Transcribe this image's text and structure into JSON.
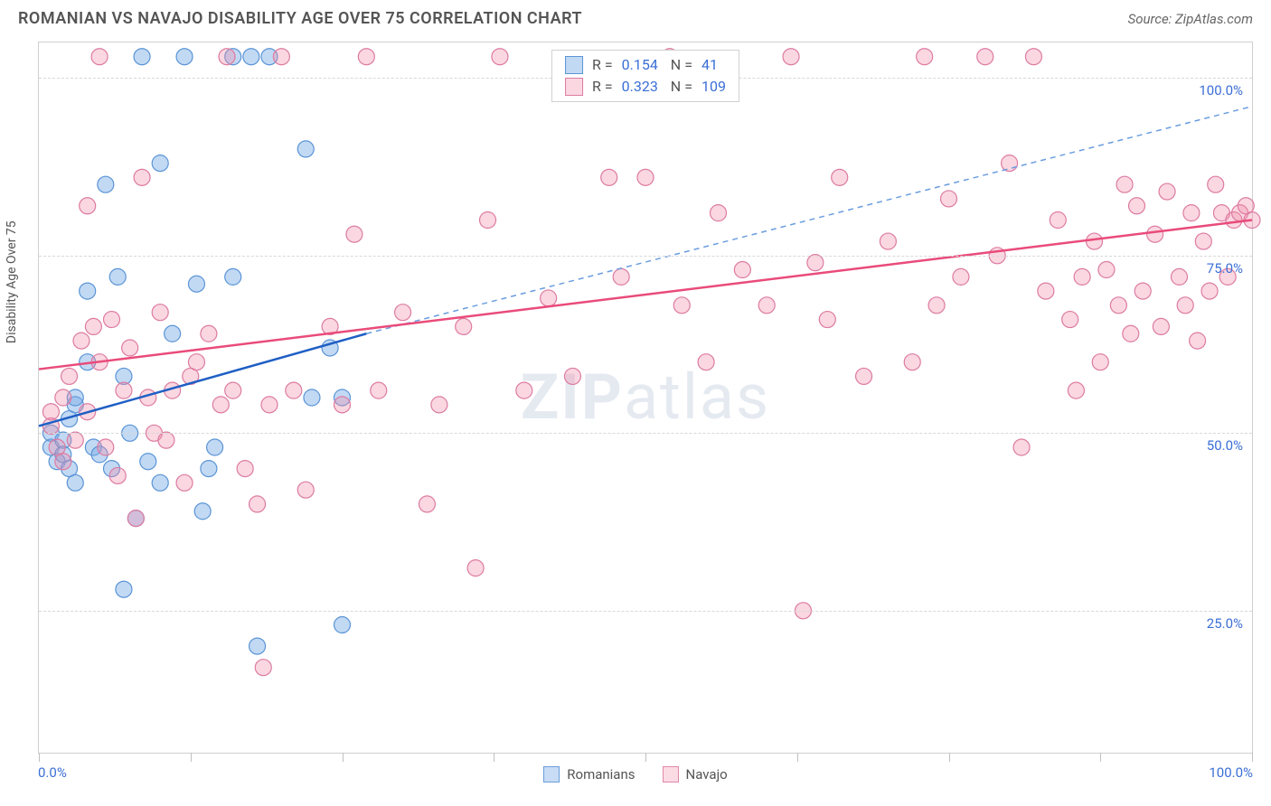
{
  "title": "ROMANIAN VS NAVAJO DISABILITY AGE OVER 75 CORRELATION CHART",
  "source": "Source: ZipAtlas.com",
  "y_axis_label": "Disability Age Over 75",
  "watermark": {
    "bold": "ZIP",
    "light": "atlas"
  },
  "chart": {
    "type": "scatter-with-regression",
    "background_color": "#ffffff",
    "grid_color": "#d8d8d8",
    "border_color": "#d0d0d0",
    "x_domain": [
      0,
      100
    ],
    "y_domain": [
      5,
      105
    ],
    "y_ticks": [
      25,
      50,
      75,
      100
    ],
    "y_tick_labels": [
      "25.0%",
      "50.0%",
      "75.0%",
      "100.0%"
    ],
    "x_ticks": [
      0,
      12.5,
      25,
      37.5,
      50,
      62.5,
      75,
      87.5,
      100
    ],
    "x_axis_labels": {
      "left": "0.0%",
      "right": "100.0%"
    },
    "y_tick_color": "#3b6fd6",
    "series": [
      {
        "name": "Romanians",
        "color_fill": "rgba(120,170,230,0.45)",
        "color_stroke": "#5a94d6",
        "points": [
          [
            1,
            48
          ],
          [
            1,
            50
          ],
          [
            1.5,
            46
          ],
          [
            2,
            49
          ],
          [
            2,
            47
          ],
          [
            2.5,
            52
          ],
          [
            2.5,
            45
          ],
          [
            3,
            54
          ],
          [
            3,
            43
          ],
          [
            3,
            55
          ],
          [
            4,
            70
          ],
          [
            4,
            60
          ],
          [
            4.5,
            48
          ],
          [
            5,
            47
          ],
          [
            5.5,
            85
          ],
          [
            6,
            45
          ],
          [
            6.5,
            72
          ],
          [
            7,
            58
          ],
          [
            7,
            28
          ],
          [
            7.5,
            50
          ],
          [
            8,
            38
          ],
          [
            8.5,
            103
          ],
          [
            9,
            46
          ],
          [
            10,
            88
          ],
          [
            10,
            43
          ],
          [
            11,
            64
          ],
          [
            12,
            103
          ],
          [
            13,
            71
          ],
          [
            13.5,
            39
          ],
          [
            14,
            45
          ],
          [
            14.5,
            48
          ],
          [
            16,
            103
          ],
          [
            16,
            72
          ],
          [
            17.5,
            103
          ],
          [
            18,
            20
          ],
          [
            19,
            103
          ],
          [
            22,
            90
          ],
          [
            22.5,
            55
          ],
          [
            24,
            62
          ],
          [
            25,
            23
          ],
          [
            25,
            55
          ]
        ],
        "regression": {
          "x1": 0,
          "y1": 51,
          "x2": 27,
          "y2": 64,
          "color": "#1f5fc4",
          "width": 2.5
        },
        "regression_ext": {
          "x1": 27,
          "y1": 64,
          "x2": 100,
          "y2": 96,
          "color": "#6a9de0",
          "dash": "6,5",
          "width": 1.5
        }
      },
      {
        "name": "Navajo",
        "color_fill": "rgba(240,140,170,0.35)",
        "color_stroke": "#dd7ba1",
        "points": [
          [
            1,
            51
          ],
          [
            1,
            53
          ],
          [
            1.5,
            48
          ],
          [
            2,
            46
          ],
          [
            2,
            55
          ],
          [
            2.5,
            58
          ],
          [
            3,
            49
          ],
          [
            3.5,
            63
          ],
          [
            4,
            82
          ],
          [
            4,
            53
          ],
          [
            4.5,
            65
          ],
          [
            5,
            103
          ],
          [
            5,
            60
          ],
          [
            5.5,
            48
          ],
          [
            6,
            66
          ],
          [
            6.5,
            44
          ],
          [
            7,
            56
          ],
          [
            7.5,
            62
          ],
          [
            8,
            38
          ],
          [
            8.5,
            86
          ],
          [
            9,
            55
          ],
          [
            9.5,
            50
          ],
          [
            10,
            67
          ],
          [
            10.5,
            49
          ],
          [
            11,
            56
          ],
          [
            12,
            43
          ],
          [
            12.5,
            58
          ],
          [
            13,
            60
          ],
          [
            14,
            64
          ],
          [
            15,
            54
          ],
          [
            15.5,
            103
          ],
          [
            16,
            56
          ],
          [
            17,
            45
          ],
          [
            18,
            40
          ],
          [
            18.5,
            17
          ],
          [
            19,
            54
          ],
          [
            20,
            103
          ],
          [
            21,
            56
          ],
          [
            22,
            42
          ],
          [
            24,
            65
          ],
          [
            25,
            54
          ],
          [
            26,
            78
          ],
          [
            27,
            103
          ],
          [
            28,
            56
          ],
          [
            30,
            67
          ],
          [
            32,
            40
          ],
          [
            33,
            54
          ],
          [
            35,
            65
          ],
          [
            36,
            31
          ],
          [
            37,
            80
          ],
          [
            38,
            103
          ],
          [
            40,
            56
          ],
          [
            42,
            69
          ],
          [
            44,
            58
          ],
          [
            47,
            86
          ],
          [
            48,
            72
          ],
          [
            50,
            86
          ],
          [
            52,
            103
          ],
          [
            53,
            68
          ],
          [
            55,
            60
          ],
          [
            56,
            81
          ],
          [
            58,
            73
          ],
          [
            60,
            68
          ],
          [
            62,
            103
          ],
          [
            63,
            25
          ],
          [
            64,
            74
          ],
          [
            65,
            66
          ],
          [
            66,
            86
          ],
          [
            68,
            58
          ],
          [
            70,
            77
          ],
          [
            72,
            60
          ],
          [
            73,
            103
          ],
          [
            74,
            68
          ],
          [
            75,
            83
          ],
          [
            76,
            72
          ],
          [
            78,
            103
          ],
          [
            79,
            75
          ],
          [
            80,
            88
          ],
          [
            81,
            48
          ],
          [
            82,
            103
          ],
          [
            83,
            70
          ],
          [
            84,
            80
          ],
          [
            85,
            66
          ],
          [
            85.5,
            56
          ],
          [
            86,
            72
          ],
          [
            87,
            77
          ],
          [
            87.5,
            60
          ],
          [
            88,
            73
          ],
          [
            89,
            68
          ],
          [
            89.5,
            85
          ],
          [
            90,
            64
          ],
          [
            90.5,
            82
          ],
          [
            91,
            70
          ],
          [
            92,
            78
          ],
          [
            92.5,
            65
          ],
          [
            93,
            84
          ],
          [
            94,
            72
          ],
          [
            94.5,
            68
          ],
          [
            95,
            81
          ],
          [
            95.5,
            63
          ],
          [
            96,
            77
          ],
          [
            96.5,
            70
          ],
          [
            97,
            85
          ],
          [
            97.5,
            81
          ],
          [
            98,
            72
          ],
          [
            98.5,
            80
          ],
          [
            99,
            81
          ],
          [
            99.5,
            82
          ],
          [
            100,
            80
          ]
        ],
        "regression": {
          "x1": 0,
          "y1": 59,
          "x2": 100,
          "y2": 80,
          "color": "#e94b7a",
          "width": 2.5
        }
      }
    ]
  },
  "correlation_legend": [
    {
      "swatch_fill": "rgba(120,170,230,0.45)",
      "swatch_stroke": "#5a94d6",
      "r": "0.154",
      "n": "41"
    },
    {
      "swatch_fill": "rgba(240,140,170,0.35)",
      "swatch_stroke": "#dd7ba1",
      "r": "0.323",
      "n": "109"
    }
  ],
  "bottom_legend": [
    {
      "label": "Romanians",
      "fill": "rgba(120,170,230,0.45)",
      "stroke": "#5a94d6"
    },
    {
      "label": "Navajo",
      "fill": "rgba(240,140,170,0.35)",
      "stroke": "#dd7ba1"
    }
  ]
}
